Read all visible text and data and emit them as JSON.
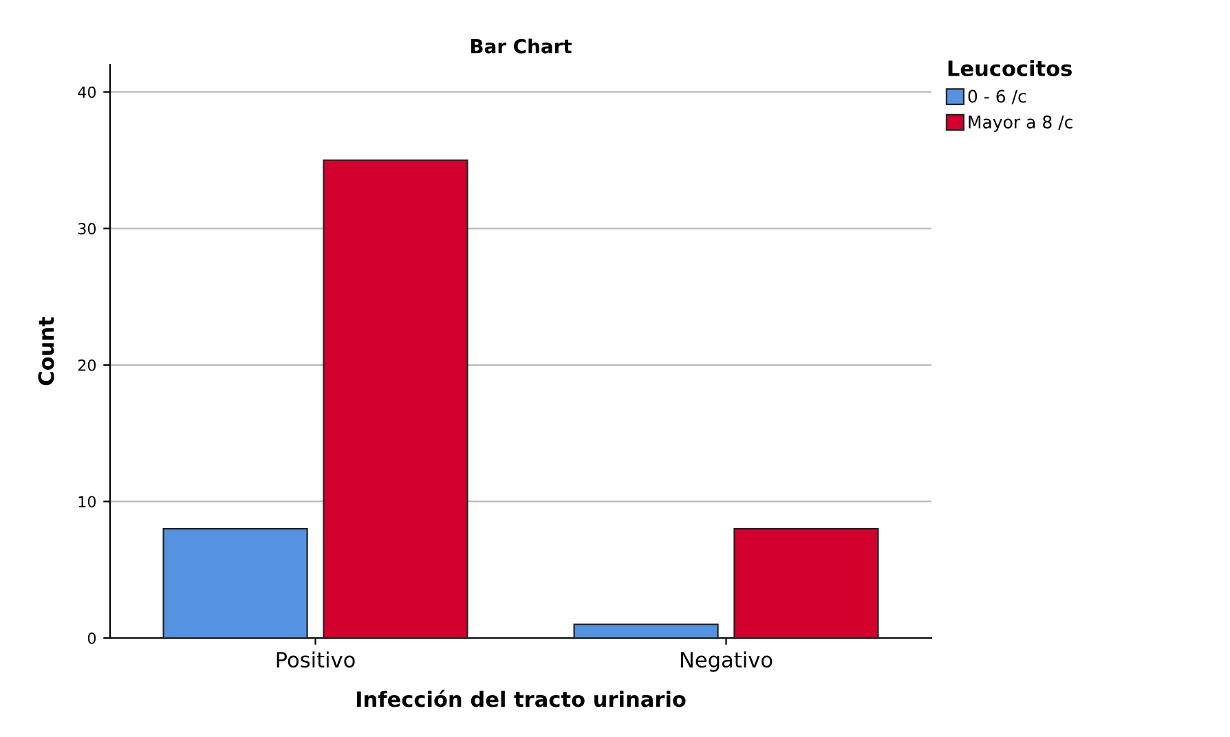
{
  "chart_data": {
    "type": "bar",
    "title": "Bar Chart",
    "xlabel": "Infección del tracto urinario",
    "ylabel": "Count",
    "legend_title": "Leucocitos",
    "categories": [
      "Positivo",
      "Negativo"
    ],
    "series": [
      {
        "name": "0 - 6 /c",
        "color": "#5592e0",
        "values": [
          8,
          1
        ]
      },
      {
        "name": "Mayor a 8 /c",
        "color": "#d3002d",
        "values": [
          35,
          8
        ]
      }
    ],
    "ylim": [
      0,
      42
    ],
    "yticks": [
      0,
      10,
      20,
      30,
      40
    ],
    "grid": "y",
    "legend": "top right"
  }
}
